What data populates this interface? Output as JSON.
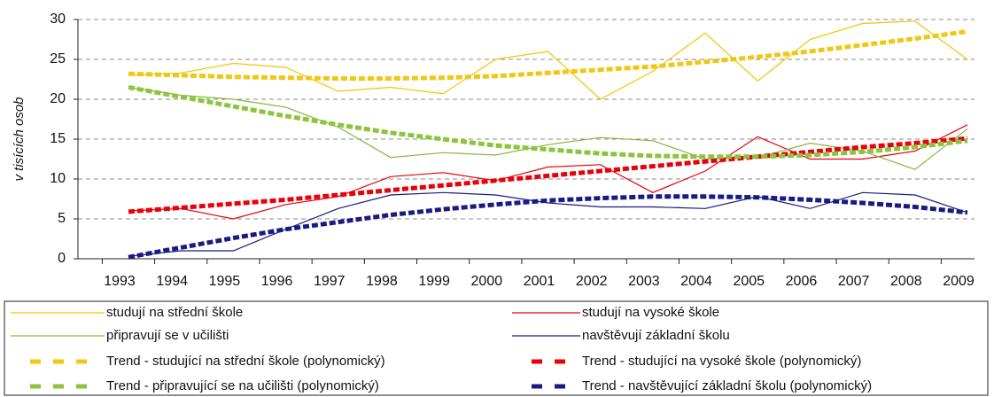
{
  "chart_data": {
    "type": "line",
    "y_label": "v tisících osob",
    "x": [
      1993,
      1994,
      1995,
      1996,
      1997,
      1998,
      1999,
      2000,
      2001,
      2002,
      2003,
      2004,
      2005,
      2006,
      2007,
      2008,
      2009
    ],
    "ylim": [
      0,
      30
    ],
    "yticks": [
      0,
      5,
      10,
      15,
      20,
      25,
      30
    ],
    "grid": true,
    "legend": "bottom",
    "series": [
      {
        "name": "studují na střední škole",
        "color": "#f5c400",
        "dashed": false,
        "values": [
          23,
          23.3,
          24.5,
          24,
          21,
          21.5,
          20.7,
          25,
          26,
          20,
          23.5,
          28.3,
          22.3,
          27.5,
          29.5,
          29.8,
          25
        ]
      },
      {
        "name": "studují na vysoké škole",
        "color": "#e8000b",
        "dashed": false,
        "values": [
          6,
          6.3,
          5,
          6.8,
          7.8,
          10.3,
          10.8,
          9.8,
          11.5,
          11.8,
          8.3,
          11,
          15.3,
          12.5,
          12.5,
          13.5,
          16.8
        ]
      },
      {
        "name": "připravují se v učilišti",
        "color": "#86b840",
        "dashed": false,
        "values": [
          21.5,
          20.5,
          20,
          19,
          16.5,
          12.7,
          13.3,
          13,
          14.3,
          15.2,
          14.8,
          12.5,
          12.7,
          14.5,
          13.5,
          11.2,
          16.3
        ]
      },
      {
        "name": "navštěvují základní školu",
        "color": "#1a1a80",
        "dashed": false,
        "values": [
          0.3,
          1,
          1,
          3.7,
          6.3,
          8,
          8.3,
          8,
          7,
          6.5,
          6.5,
          6.3,
          7.8,
          6.3,
          8.3,
          8,
          5.8
        ]
      },
      {
        "name": "Trend - studující na střední škole (polynomický)",
        "color": "#f0c814",
        "dashed": true,
        "values": [
          23.2,
          23,
          22.8,
          22.7,
          22.6,
          22.6,
          22.7,
          22.9,
          23.3,
          23.7,
          24.1,
          24.7,
          25.3,
          26,
          26.8,
          27.6,
          28.5
        ]
      },
      {
        "name": "Trend - studující na vysoké škole (polynomický)",
        "color": "#e8000b",
        "dashed": true,
        "values": [
          5.9,
          6.4,
          6.9,
          7.4,
          8,
          8.6,
          9.2,
          9.8,
          10.4,
          11,
          11.6,
          12.2,
          12.8,
          13.4,
          14,
          14.5,
          15.1
        ]
      },
      {
        "name": "Trend - připravující se na učilišti (polynomický)",
        "color": "#8cc43c",
        "dashed": true,
        "values": [
          21.5,
          20.3,
          19.1,
          17.9,
          16.8,
          15.8,
          15,
          14.2,
          13.7,
          13.2,
          12.9,
          12.8,
          12.8,
          13,
          13.4,
          14,
          14.8
        ]
      },
      {
        "name": "Trend - navštěvující základní školu (polynomický)",
        "color": "#1a1a80",
        "dashed": true,
        "values": [
          0.2,
          1.4,
          2.6,
          3.7,
          4.6,
          5.5,
          6.2,
          6.8,
          7.3,
          7.6,
          7.8,
          7.8,
          7.7,
          7.4,
          7,
          6.5,
          5.8
        ]
      }
    ]
  }
}
